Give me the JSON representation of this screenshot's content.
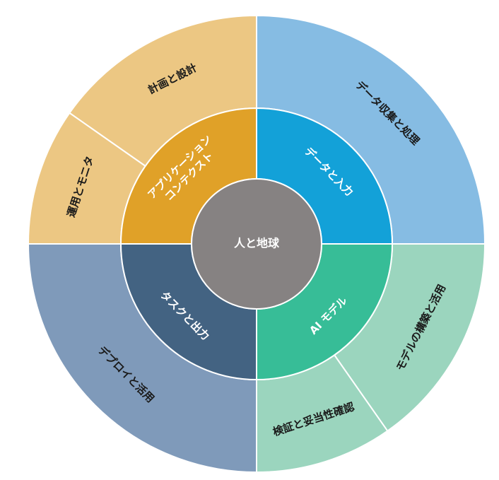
{
  "center": {
    "label": "人と地球",
    "color": "#868282"
  },
  "inner_ring": [
    {
      "id": "inner-app-context",
      "lines": [
        "アプリケーション",
        "コンテクスト"
      ],
      "color": "#E0A128",
      "from": 270,
      "to": 360,
      "mid": 315
    },
    {
      "id": "inner-data-input",
      "lines": [
        "データと入力"
      ],
      "color": "#13A1D8",
      "from": 0,
      "to": 90,
      "mid": 45
    },
    {
      "id": "inner-ai-model",
      "lines": [
        "AI モデル"
      ],
      "color": "#37BD97",
      "from": 90,
      "to": 180,
      "mid": 135
    },
    {
      "id": "inner-task-output",
      "lines": [
        "タスクと出力"
      ],
      "color": "#436382",
      "from": 180,
      "to": 270,
      "mid": 225
    }
  ],
  "outer_ring": [
    {
      "id": "outer-data-collection",
      "label": "データ収集と処理",
      "color": "#86BCE3",
      "from": 0,
      "to": 90,
      "mid": 45
    },
    {
      "id": "outer-model-build",
      "label": "モデルの構築と活用",
      "color": "#9BD5BE",
      "from": 90,
      "to": 145,
      "mid": 117
    },
    {
      "id": "outer-validation",
      "label": "検証と妥当性確認",
      "color": "#9BD5BE",
      "from": 145,
      "to": 180,
      "mid": 162
    },
    {
      "id": "outer-deploy",
      "label": "デプロイと活用",
      "color": "#7F9ABA",
      "from": 180,
      "to": 270,
      "mid": 225
    },
    {
      "id": "outer-operation",
      "label": "運用とモニタ",
      "color": "#ECC783",
      "from": 270,
      "to": 305,
      "mid": 288
    },
    {
      "id": "outer-planning",
      "label": "計画と設計",
      "color": "#ECC783",
      "from": 305,
      "to": 360,
      "mid": 333
    }
  ]
}
